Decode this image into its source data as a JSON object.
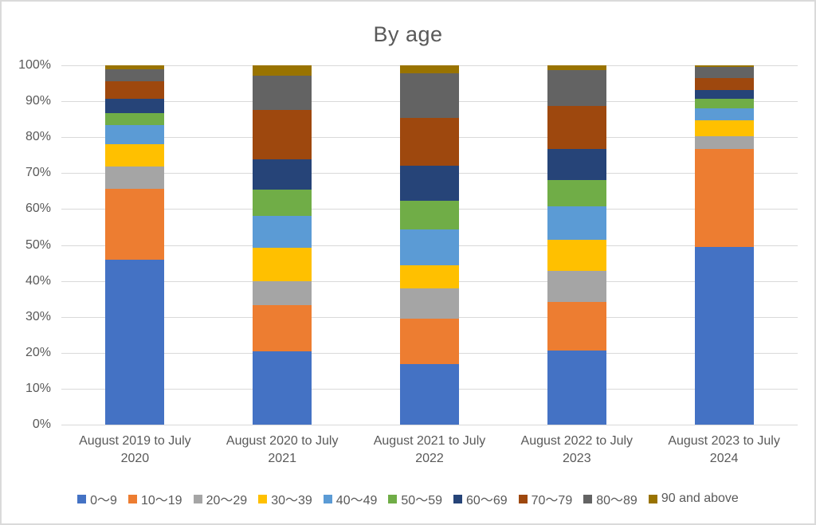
{
  "chart_data": {
    "type": "bar",
    "stacked": true,
    "percent_stacked": true,
    "title": "By age",
    "xlabel": "",
    "ylabel": "",
    "ylim": [
      0,
      100
    ],
    "grid": true,
    "legend_position": "bottom",
    "y_ticks_top_to_bottom": [
      "100%",
      "90%",
      "80%",
      "70%",
      "60%",
      "50%",
      "40%",
      "30%",
      "20%",
      "10%",
      "0%"
    ],
    "categories": [
      "August 2019 to July 2020",
      "August 2020 to July 2021",
      "August 2021 to July 2022",
      "August 2022 to July 2023",
      "August 2023 to July 2024"
    ],
    "series": [
      {
        "name": "0〜9",
        "color": "#4472C4",
        "values": [
          45.8,
          20.4,
          16.8,
          20.7,
          49.4
        ]
      },
      {
        "name": "10〜19",
        "color": "#ED7D31",
        "values": [
          19.8,
          12.8,
          12.7,
          13.5,
          27.4
        ]
      },
      {
        "name": "20〜29",
        "color": "#A5A5A5",
        "values": [
          6.2,
          6.7,
          8.3,
          8.6,
          3.5
        ]
      },
      {
        "name": "30〜39",
        "color": "#FFC000",
        "values": [
          6.3,
          9.4,
          6.5,
          8.6,
          4.5
        ]
      },
      {
        "name": "40〜49",
        "color": "#5B9BD5",
        "values": [
          5.2,
          8.7,
          10.1,
          9.3,
          3.3
        ]
      },
      {
        "name": "50〜59",
        "color": "#70AD47",
        "values": [
          3.4,
          7.4,
          8.0,
          7.4,
          2.6
        ]
      },
      {
        "name": "60〜69",
        "color": "#264478",
        "values": [
          4.0,
          8.5,
          9.7,
          8.7,
          2.5
        ]
      },
      {
        "name": "70〜79",
        "color": "#9E480E",
        "values": [
          4.8,
          13.7,
          13.3,
          11.8,
          3.2
        ]
      },
      {
        "name": "80〜89",
        "color": "#636363",
        "values": [
          3.5,
          9.6,
          12.4,
          10.1,
          3.1
        ]
      },
      {
        "name": "90 and above",
        "color": "#997300",
        "values": [
          1.0,
          2.8,
          2.2,
          1.3,
          0.5
        ]
      }
    ]
  },
  "style": {
    "grid_color": "#D9D9D9",
    "text_color": "#595959",
    "frame_border_color": "#DADADA",
    "background_color": "#FFFFFF"
  }
}
